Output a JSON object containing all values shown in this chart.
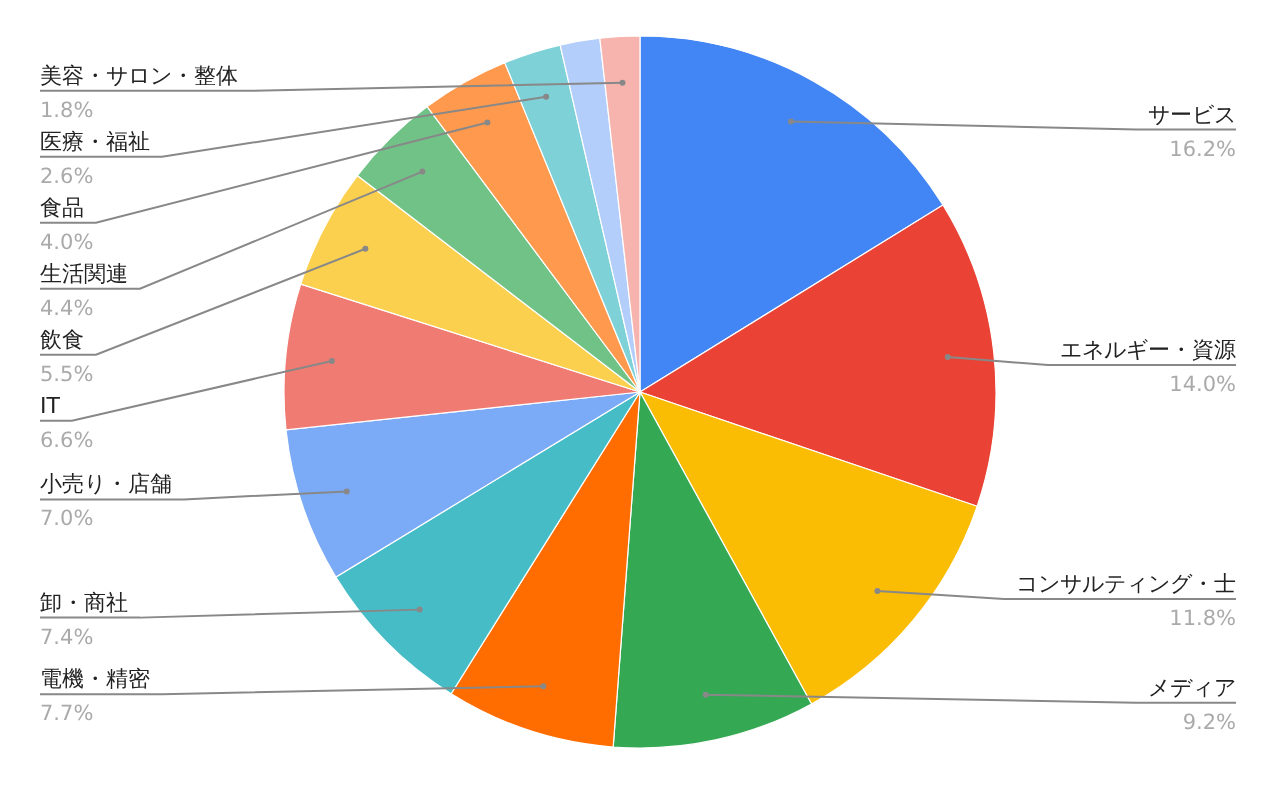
{
  "chart_data": {
    "type": "pie",
    "categories": [
      "サービス",
      "エネルギー・資源",
      "コンサルティング・士",
      "メディア",
      "電機・精密",
      "卸・商社",
      "小売り・店舗",
      "IT",
      "飲食",
      "生活関連",
      "食品",
      "医療・福祉",
      null,
      "美容・サロン・整体"
    ],
    "values": [
      16.2,
      14.0,
      11.8,
      9.2,
      7.7,
      7.4,
      7.0,
      6.6,
      5.5,
      4.4,
      4.0,
      2.6,
      1.8,
      1.8
    ],
    "value_labels": [
      "16.2%",
      "14.0%",
      "11.8%",
      "9.2%",
      "7.7%",
      "7.4%",
      "7.0%",
      "6.6%",
      "5.5%",
      "4.4%",
      "4.0%",
      "2.6%",
      null,
      "1.8%"
    ],
    "colors": [
      "#4285f4",
      "#ea4335",
      "#fbbc04",
      "#34a853",
      "#ff6d01",
      "#46bdc6",
      "#7baaf7",
      "#f07b72",
      "#fcd04f",
      "#71c287",
      "#ff994d",
      "#7ed1d7",
      "#b3cefb",
      "#f7b4ae"
    ]
  }
}
